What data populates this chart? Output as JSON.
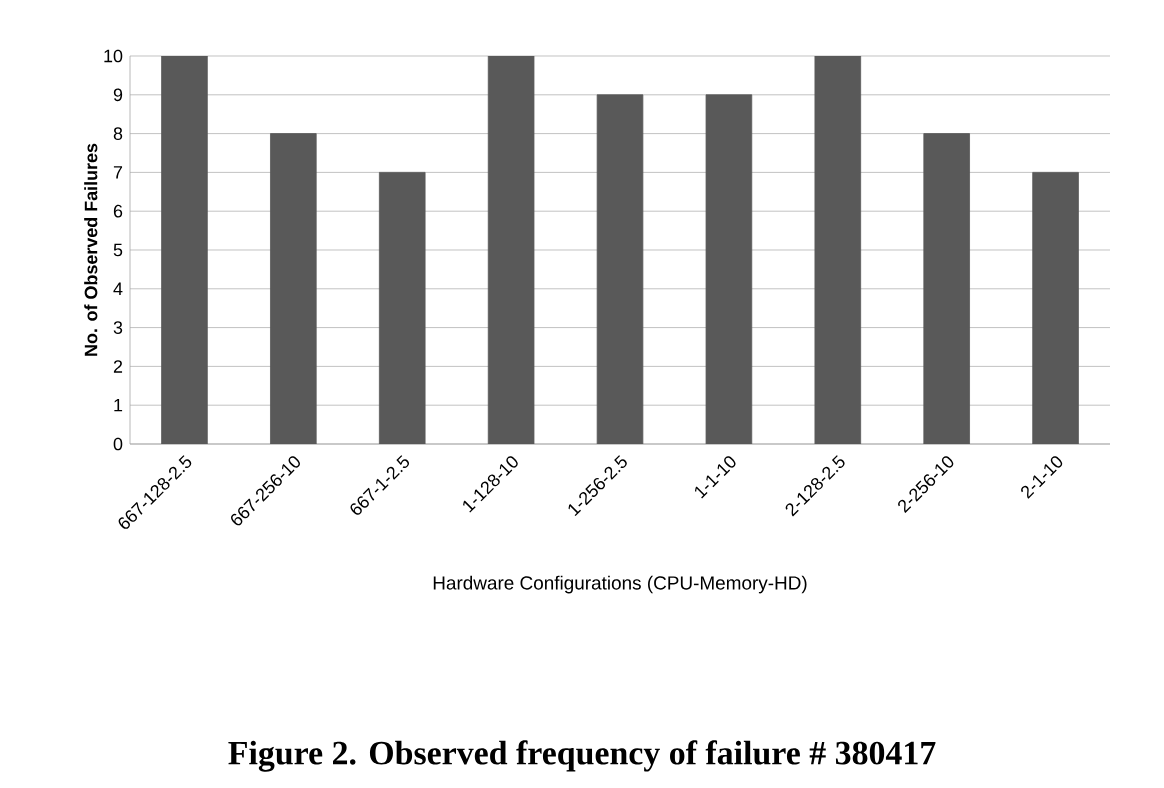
{
  "chart_data": {
    "type": "bar",
    "categories": [
      "667-128-2.5",
      "667-256-10",
      "667-1-2.5",
      "1-128-10",
      "1-256-2.5",
      "1-1-10",
      "2-128-2.5",
      "2-256-10",
      "2-1-10"
    ],
    "values": [
      10,
      8,
      7,
      10,
      9,
      9,
      10,
      8,
      7
    ],
    "color": "#595959",
    "ylim": [
      0,
      10
    ],
    "yticks": [
      0,
      1,
      2,
      3,
      4,
      5,
      6,
      7,
      8,
      9,
      10
    ],
    "grid": "y",
    "xlabel": "Hardware Configurations (CPU-Memory-HD)",
    "ylabel": "No. of Observed Failures",
    "annotations": [
      "Figure 2. Observed frequency of failure # 380417"
    ]
  }
}
